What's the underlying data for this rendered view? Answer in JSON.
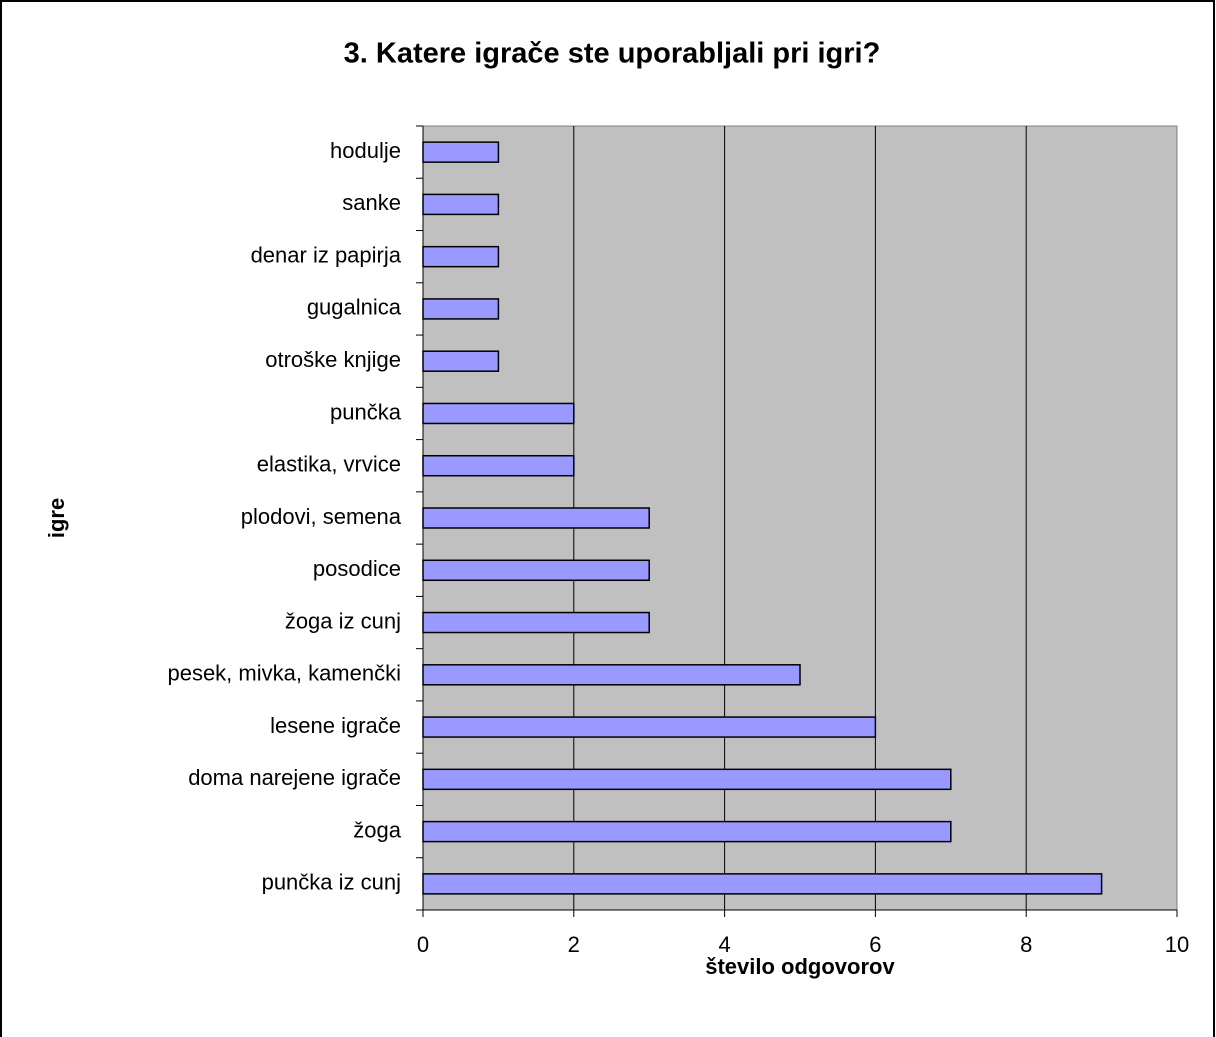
{
  "chart_data": {
    "type": "barh",
    "title": "3. Katere igrače ste uporabljali pri igri?",
    "x_label": "število odgovorov",
    "y_label": "igre",
    "categories": [
      "hodulje",
      "sanke",
      "denar iz papirja",
      "gugalnica",
      "otroške knjige",
      "punčka",
      "elastika, vrvice",
      "plodovi, semena",
      "posodice",
      "žoga iz cunj",
      "pesek, mivka, kamenčki",
      "lesene igrače",
      "doma narejene igrače",
      "žoga",
      "punčka iz cunj"
    ],
    "values": [
      1,
      1,
      1,
      1,
      1,
      2,
      2,
      3,
      3,
      3,
      5,
      6,
      7,
      7,
      9
    ],
    "color": "#9999ff",
    "xlim": [
      0,
      10
    ],
    "xticks": [
      0,
      2,
      4,
      6,
      8,
      10
    ],
    "grid": true
  }
}
